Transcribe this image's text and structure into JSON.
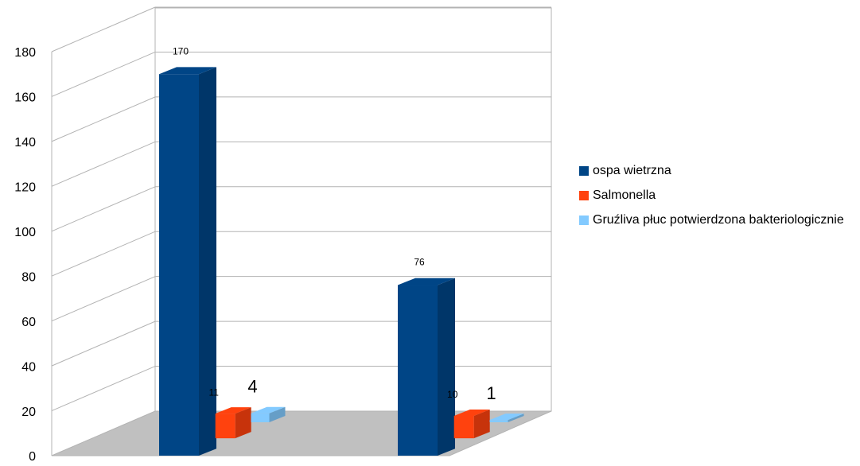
{
  "chart_data": {
    "type": "bar3d",
    "categories": [
      null,
      null
    ],
    "series": [
      {
        "name": "ospa wietrzna",
        "color": "#004586",
        "values": [
          170,
          76
        ]
      },
      {
        "name": "Salmonella",
        "color": "#ff420e",
        "values": [
          11,
          10
        ]
      },
      {
        "name": "Gruźliva płuc potwierdzona bakteriologicznie",
        "color": "#83caff",
        "values": [
          4,
          1
        ]
      }
    ],
    "ylim": [
      0,
      180
    ],
    "yticks": [
      0,
      20,
      40,
      60,
      80,
      100,
      120,
      140,
      160,
      180
    ],
    "grid": true,
    "legend": "right"
  }
}
